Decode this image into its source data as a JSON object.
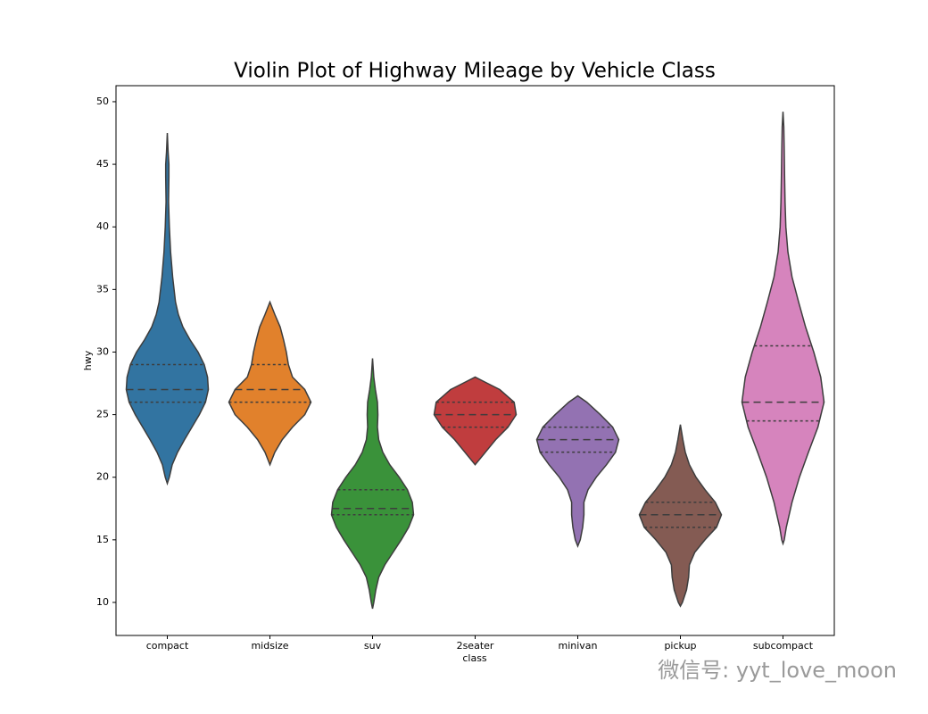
{
  "chart_data": {
    "type": "violin",
    "title": "Violin Plot of Highway Mileage by Vehicle Class",
    "xlabel": "class",
    "ylabel": "hwy",
    "ylim": [
      7.36,
      51.28
    ],
    "yticks": [
      10,
      15,
      20,
      25,
      30,
      35,
      40,
      45,
      50
    ],
    "categories": [
      "compact",
      "midsize",
      "suv",
      "2seater",
      "minivan",
      "pickup",
      "subcompact"
    ],
    "violins": [
      {
        "color": "#3274a1",
        "q1": 26,
        "median": 27,
        "q3": 29,
        "y": [
          19.5,
          20,
          21,
          22,
          23,
          24,
          25,
          26,
          27,
          28,
          29,
          30,
          31,
          32,
          33,
          34,
          36,
          38,
          40,
          42,
          44,
          45,
          46,
          47.5
        ],
        "widths": [
          0,
          0.05,
          0.12,
          0.25,
          0.42,
          0.6,
          0.78,
          0.93,
          1.0,
          0.98,
          0.9,
          0.75,
          0.55,
          0.38,
          0.27,
          0.2,
          0.13,
          0.08,
          0.05,
          0.03,
          0.04,
          0.04,
          0.02,
          0
        ]
      },
      {
        "color": "#e1812c",
        "q1": 26,
        "median": 27,
        "q3": 29,
        "y": [
          21,
          22,
          23,
          24,
          25,
          26,
          27,
          28,
          29,
          30,
          31,
          32,
          33,
          34
        ],
        "widths": [
          0,
          0.12,
          0.3,
          0.55,
          0.85,
          1.0,
          0.85,
          0.55,
          0.45,
          0.4,
          0.33,
          0.25,
          0.12,
          0
        ]
      },
      {
        "color": "#3a923a",
        "q1": 17,
        "median": 17.5,
        "q3": 19,
        "y": [
          9.5,
          10,
          11,
          12,
          13,
          14,
          15,
          16,
          17,
          18,
          19,
          20,
          21,
          22,
          23,
          24,
          25,
          26,
          27,
          28,
          29.5
        ],
        "widths": [
          0,
          0.03,
          0.08,
          0.15,
          0.3,
          0.5,
          0.7,
          0.88,
          1.0,
          0.97,
          0.85,
          0.65,
          0.42,
          0.25,
          0.15,
          0.12,
          0.13,
          0.12,
          0.07,
          0.03,
          0
        ]
      },
      {
        "color": "#c03d3e",
        "q1": 24,
        "median": 25,
        "q3": 26,
        "y": [
          21,
          22,
          23,
          24,
          25,
          26,
          27,
          27.5,
          28
        ],
        "widths": [
          0,
          0.25,
          0.5,
          0.8,
          1.0,
          0.95,
          0.6,
          0.3,
          0
        ]
      },
      {
        "color": "#9372b2",
        "q1": 22,
        "median": 23,
        "q3": 24,
        "y": [
          14.5,
          15,
          16,
          17,
          18,
          19,
          20,
          21,
          22,
          23,
          24,
          25,
          26,
          26.5
        ],
        "widths": [
          0,
          0.06,
          0.12,
          0.15,
          0.15,
          0.25,
          0.45,
          0.7,
          0.92,
          1.0,
          0.85,
          0.55,
          0.22,
          0
        ]
      },
      {
        "color": "#845b53",
        "q1": 16,
        "median": 17,
        "q3": 18,
        "y": [
          9.7,
          10,
          11,
          12,
          13,
          14,
          15,
          16,
          17,
          18,
          19,
          20,
          21,
          22,
          23,
          24.2
        ],
        "widths": [
          0,
          0.05,
          0.15,
          0.2,
          0.22,
          0.35,
          0.6,
          0.88,
          1.0,
          0.85,
          0.6,
          0.38,
          0.22,
          0.12,
          0.06,
          0
        ]
      },
      {
        "color": "#d684bd",
        "q1": 24.5,
        "median": 26,
        "q3": 30.5,
        "y": [
          14.7,
          15,
          16,
          17,
          18,
          20,
          22,
          24,
          26,
          28,
          30,
          32,
          34,
          36,
          38,
          40,
          42,
          44,
          46,
          48,
          49.2
        ],
        "widths": [
          0,
          0.03,
          0.08,
          0.15,
          0.22,
          0.4,
          0.62,
          0.85,
          1.0,
          0.92,
          0.75,
          0.55,
          0.38,
          0.22,
          0.12,
          0.07,
          0.05,
          0.04,
          0.03,
          0.02,
          0
        ]
      }
    ]
  },
  "watermark": "微信号: yyt_love_moon"
}
